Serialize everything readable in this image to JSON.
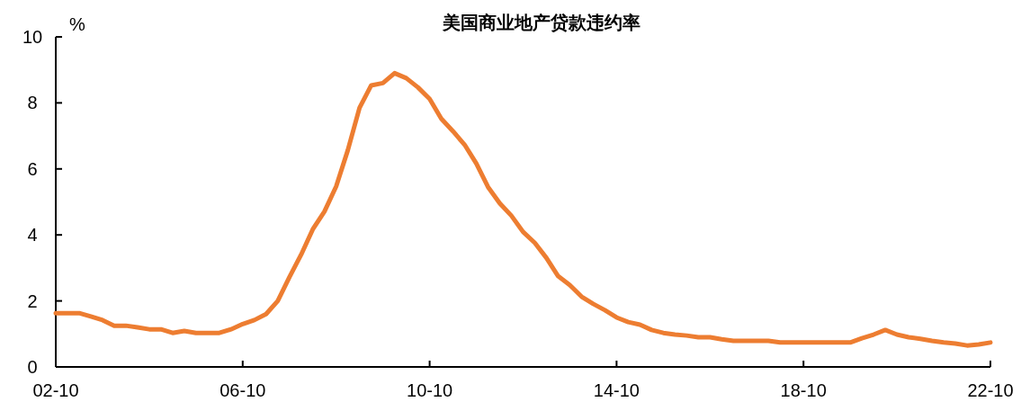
{
  "chart_data": {
    "type": "line",
    "title": "美国商业地产贷款违约率",
    "ylabel": "%",
    "categories": [
      "02-10",
      null,
      null,
      null,
      null,
      null,
      null,
      null,
      null,
      null,
      null,
      null,
      null,
      null,
      null,
      null,
      "06-10",
      null,
      null,
      null,
      null,
      null,
      null,
      null,
      null,
      null,
      null,
      null,
      null,
      null,
      null,
      null,
      "10-10",
      null,
      null,
      null,
      null,
      null,
      null,
      null,
      null,
      null,
      null,
      null,
      null,
      null,
      null,
      null,
      "14-10",
      null,
      null,
      null,
      null,
      null,
      null,
      null,
      null,
      null,
      null,
      null,
      null,
      null,
      null,
      null,
      "18-10",
      null,
      null,
      null,
      null,
      null,
      null,
      null,
      null,
      null,
      null,
      null,
      null,
      null,
      null,
      null,
      "22-10"
    ],
    "series": [
      {
        "color": "#ed7d31",
        "values": [
          1.63,
          1.63,
          1.63,
          1.53,
          1.42,
          1.25,
          1.25,
          1.2,
          1.14,
          1.14,
          1.03,
          1.09,
          1.03,
          1.03,
          1.03,
          1.14,
          1.3,
          1.42,
          1.6,
          2.0,
          2.72,
          3.4,
          4.17,
          4.71,
          5.47,
          6.57,
          7.85,
          8.53,
          8.6,
          8.9,
          8.75,
          8.47,
          8.12,
          7.52,
          7.14,
          6.73,
          6.16,
          5.45,
          4.96,
          4.58,
          4.09,
          3.76,
          3.3,
          2.75,
          2.48,
          2.13,
          1.91,
          1.72,
          1.5,
          1.36,
          1.28,
          1.12,
          1.03,
          0.98,
          0.95,
          0.9,
          0.9,
          0.84,
          0.79,
          0.79,
          0.79,
          0.79,
          0.74,
          0.74,
          0.74,
          0.74,
          0.74,
          0.74,
          0.74,
          0.87,
          0.98,
          1.12,
          0.98,
          0.9,
          0.85,
          0.79,
          0.74,
          0.71,
          0.65,
          0.68,
          0.74
        ]
      }
    ],
    "ylim": [
      0,
      10
    ],
    "yticks": [
      0,
      2,
      4,
      6,
      8,
      10
    ]
  }
}
